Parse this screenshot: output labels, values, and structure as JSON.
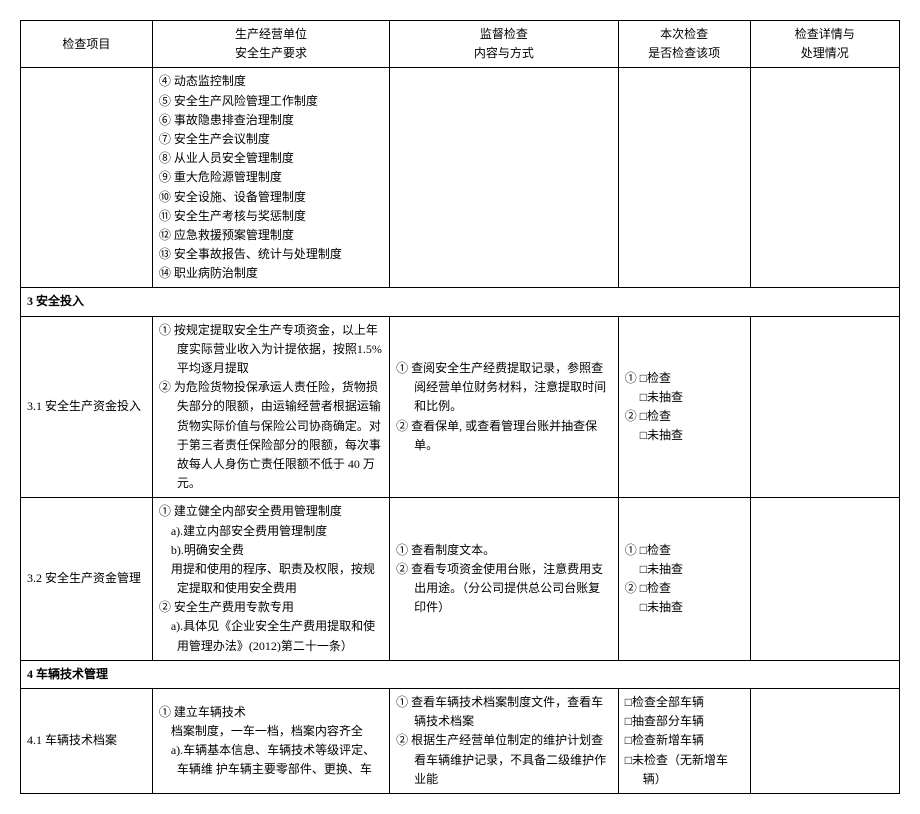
{
  "headers": {
    "col1": "检查项目",
    "col2_line1": "生产经营单位",
    "col2_line2": "安全生产要求",
    "col3_line1": "监督检查",
    "col3_line2": "内容与方式",
    "col4_line1": "本次检查",
    "col4_line2": "是否检查该项",
    "col5_line1": "检查详情与",
    "col5_line2": "处理情况"
  },
  "row_topcont": {
    "items": [
      "④ 动态监控制度",
      "⑤ 安全生产风险管理工作制度",
      "⑥ 事故隐患排查治理制度",
      "⑦ 安全生产会议制度",
      "⑧ 从业人员安全管理制度",
      "⑨ 重大危险源管理制度",
      "⑩ 安全设施、设备管理制度",
      "⑪ 安全生产考核与奖惩制度",
      "⑫ 应急救援预案管理制度",
      "⑬ 安全事故报告、统计与处理制度",
      "⑭ 职业病防治制度"
    ]
  },
  "section3": {
    "title": "3 安全投入"
  },
  "row31": {
    "name": "3.1 安全生产资金投入",
    "req": [
      "① 按规定提取安全生产专项资金，以上年度实际营业收入为计提依据，按照1.5%平均逐月提取",
      "② 为危险货物投保承运人责任险，货物损失部分的限额，由运输经营者根据运输货物实际价值与保险公司协商确定。对于第三者责任保险部分的限额，每次事故每人人身伤亡责任限额不低于 40 万元。"
    ],
    "chk": [
      "① 查阅安全生产经费提取记录，参照查阅经营单位财务材料，注意提取时间和比例。",
      "② 查看保单, 或查看管理台账并抽查保单。"
    ],
    "opts": [
      "① □检查",
      "　 □未抽查",
      "② □检查",
      "　 □未抽查"
    ]
  },
  "row32": {
    "name": "3.2 安全生产资金管理",
    "req": [
      "① 建立健全内部安全费用管理制度",
      "　a).建立内部安全费用管理制度",
      "　b).明确安全费",
      "　用提和使用的程序、职责及权限，按规定提取和使用安全费用",
      "② 安全生产费用专款专用",
      "　a).具体见《企业安全生产费用提取和使用管理办法》(2012)第二十一条）"
    ],
    "chk": [
      "① 查看制度文本。",
      "② 查看专项资金使用台账，注意费用支出用途。（分公司提供总公司台账复印件）"
    ],
    "opts": [
      "① □检查",
      "　 □未抽查",
      "② □检查",
      "　 □未抽查"
    ]
  },
  "section4": {
    "title": "4 车辆技术管理"
  },
  "row41": {
    "name": "4.1 车辆技术档案",
    "req": [
      "① 建立车辆技术",
      "　档案制度，一车一档，档案内容齐全",
      "　a).车辆基本信息、车辆技术等级评定、车辆维 护车辆主要零部件、更换、车"
    ],
    "chk": [
      "① 查看车辆技术档案制度文件，查看车辆技术档案",
      "② 根据生产经营单位制定的维护计划查看车辆维护记录，不具备二级维护作业能"
    ],
    "opts": [
      "□检查全部车辆",
      "□抽查部分车辆",
      "□检查新增车辆",
      "□未检查（无新增车辆）"
    ]
  }
}
